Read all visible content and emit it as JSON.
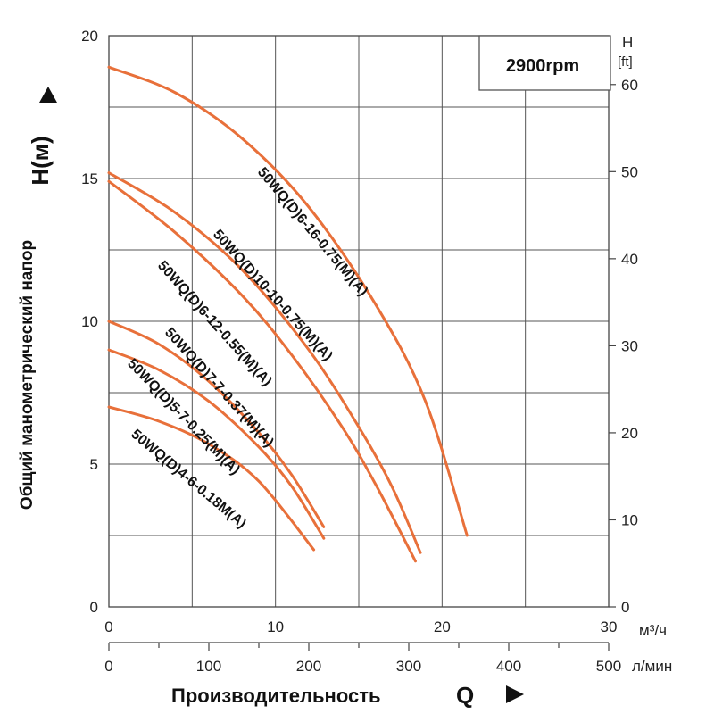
{
  "chart_data": {
    "type": "line",
    "title": "",
    "speed_label": "2900rpm",
    "ylabel": "Общий манометрический напор",
    "ylabel_symbol": "H(м)",
    "xlabel": "Производительность",
    "xlabel_symbol": "Q",
    "y_right_label": "H",
    "y_right_unit": "[ft]",
    "x_unit": "м³/ч",
    "x2_unit": "л/мин",
    "xlim": [
      0,
      30
    ],
    "ylim": [
      0,
      20
    ],
    "x_ticks": [
      "0",
      "10",
      "20",
      "30"
    ],
    "y_ticks": [
      "0",
      "5",
      "10",
      "15",
      "20"
    ],
    "y_right_ticks": [
      "0",
      "10",
      "20",
      "30",
      "40",
      "50",
      "60"
    ],
    "x2_ticks": [
      "0",
      "100",
      "200",
      "300",
      "400",
      "500"
    ],
    "grid": true,
    "curve_color": "#e8703a",
    "series": [
      {
        "name": "50WQ(D)6-16-0.75(M)(A)",
        "x": [
          0,
          4,
          8,
          12,
          16,
          19,
          21.5
        ],
        "y": [
          18.9,
          18.0,
          16.4,
          14.0,
          10.6,
          7.2,
          2.5
        ]
      },
      {
        "name": "50WQ(D)10-10-0.75(M)(A)",
        "x": [
          0,
          4,
          8,
          12,
          15,
          17,
          18.7
        ],
        "y": [
          15.2,
          13.8,
          11.8,
          9.0,
          6.3,
          4.2,
          1.9
        ]
      },
      {
        "name": "50WQ(D)6-12-0.55(M)(A)",
        "x": [
          0,
          4,
          8,
          11,
          14,
          16,
          18.4
        ],
        "y": [
          14.9,
          13.1,
          10.9,
          8.8,
          6.3,
          4.3,
          1.6
        ]
      },
      {
        "name": "50WQ(D)7-7-0.37(M)(A)",
        "x": [
          0,
          3,
          6,
          9,
          11,
          12.9
        ],
        "y": [
          10.0,
          9.2,
          7.9,
          6.1,
          4.6,
          2.8
        ]
      },
      {
        "name": "50WQ(D)5-7-0.25(M)(A)",
        "x": [
          0,
          3,
          6,
          9,
          11,
          12.9
        ],
        "y": [
          9.0,
          8.3,
          7.2,
          5.6,
          4.2,
          2.4
        ]
      },
      {
        "name": "50WQ(D)4-6-0.18M(A)",
        "x": [
          0,
          3,
          6,
          9,
          12.3
        ],
        "y": [
          7.0,
          6.5,
          5.7,
          4.4,
          2.0
        ]
      }
    ]
  }
}
